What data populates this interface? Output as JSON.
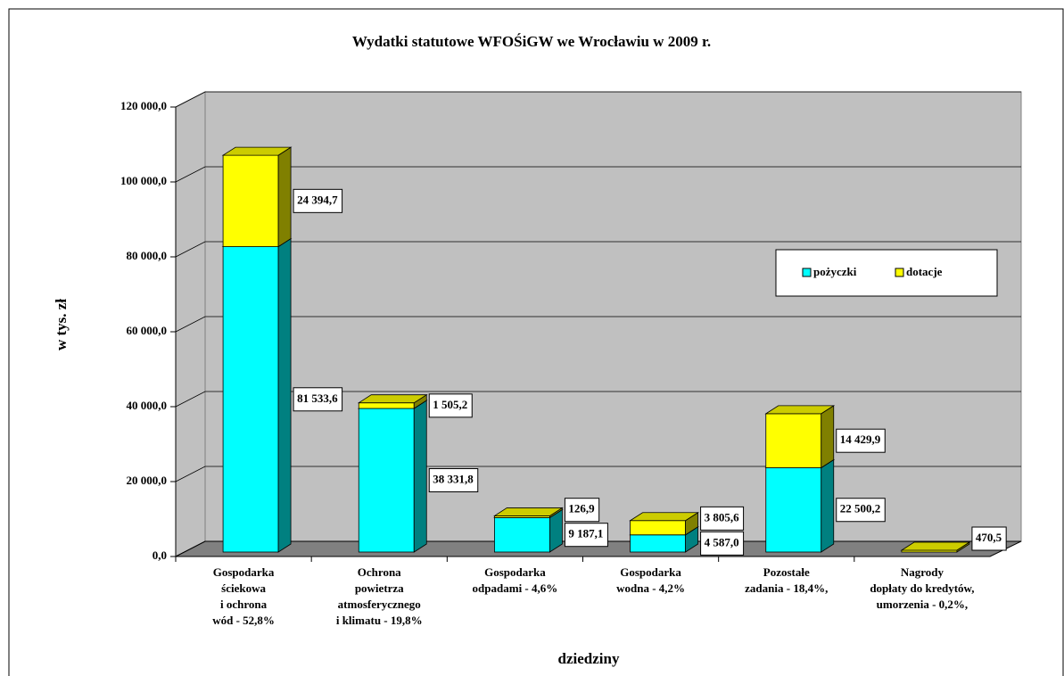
{
  "chart_data": {
    "type": "bar3d_stacked",
    "title": "Wydatki statutowe WFOŚiGW we Wrocławiu w 2009 r.",
    "y_label": "w tys. zł",
    "x_label": "dziedziny",
    "categories": [
      [
        "Gospodarka",
        "ściekowa",
        "i ochrona",
        "wód - 52,8%"
      ],
      [
        "Ochrona",
        "powietrza",
        "atmosferycznego",
        "i klimatu - 19,8%"
      ],
      [
        "Gospodarka",
        "odpadami - 4,6%"
      ],
      [
        "Gospodarka",
        "wodna - 4,2%"
      ],
      [
        "Pozostałe",
        "zadania - 18,4%,"
      ],
      [
        "Nagrody",
        "dopłaty do kredytów,",
        "umorzenia - 0,2%,"
      ]
    ],
    "series": [
      {
        "name": "pożyczki",
        "color": "#00FFFF",
        "side": "#008080",
        "values": [
          81533.6,
          38331.8,
          9187.1,
          4587.0,
          22500.2,
          null
        ],
        "value_labels": [
          "81 533,6",
          "38 331,8",
          "9 187,1",
          "4 587,0",
          "22 500,2",
          null
        ]
      },
      {
        "name": "dotacje",
        "color": "#FFFF00",
        "side": "#808000",
        "values": [
          24394.7,
          1505.2,
          126.9,
          3805.6,
          14429.9,
          470.5
        ],
        "value_labels": [
          "24 394,7",
          "1 505,2",
          "126,9",
          "3 805,6",
          "14 429,9",
          "470,5"
        ]
      }
    ],
    "ylim": [
      0,
      120000
    ],
    "yticks": [
      {
        "value": 0,
        "label": "0,0"
      },
      {
        "value": 20000,
        "label": "20 000,0"
      },
      {
        "value": 40000,
        "label": "40 000,0"
      },
      {
        "value": 60000,
        "label": "60 000,0"
      },
      {
        "value": 80000,
        "label": "80 000,0"
      },
      {
        "value": 100000,
        "label": "100 000,0"
      },
      {
        "value": 120000,
        "label": "120 000,0"
      }
    ],
    "grid": true,
    "legend": "upper right"
  }
}
